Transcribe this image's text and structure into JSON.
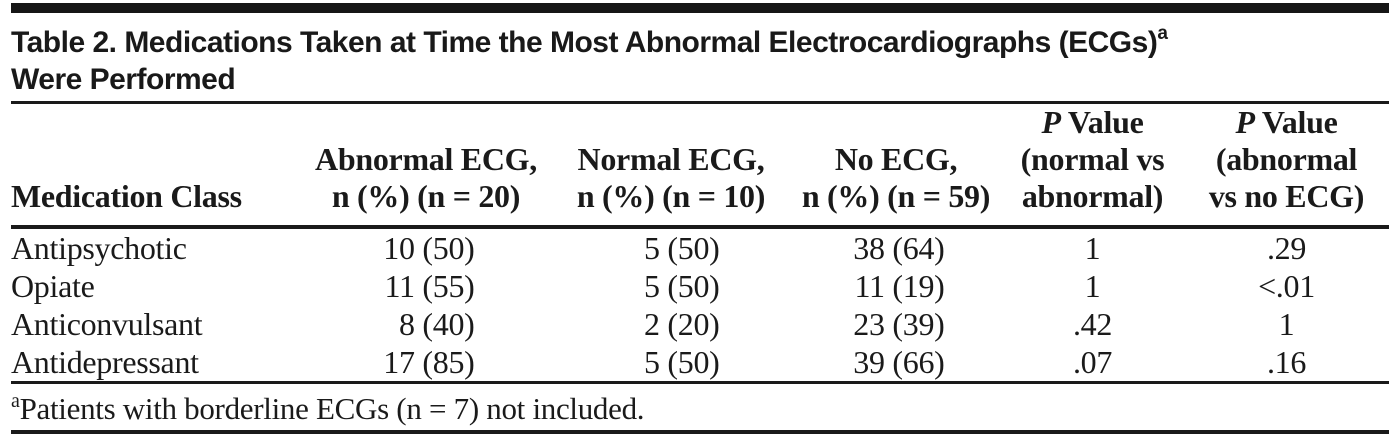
{
  "colors": {
    "background": "#ffffff",
    "text": "#1a1a1a",
    "rule": "#1a1a1a",
    "top_bar": "#161616"
  },
  "title": {
    "line1": "Table 2. Medications Taken at Time the Most Abnormal Electrocardiographs (ECGs)",
    "superscript": "a",
    "line2": "Were Performed"
  },
  "table": {
    "header": {
      "col1": "Medication Class",
      "col2": {
        "line1": "Abnormal ECG,",
        "line2": "n (%) (n = 20)"
      },
      "col3": {
        "line1": "Normal ECG,",
        "line2": "n (%) (n = 10)"
      },
      "col4": {
        "line1": "No ECG,",
        "line2": "n (%) (n = 59)"
      },
      "col5": {
        "p": "P",
        "line1_rest": " Value",
        "line2": "(normal vs",
        "line3": "abnormal)"
      },
      "col6": {
        "p": "P",
        "line1_rest": " Value",
        "line2": "(abnormal",
        "line3": "vs no ECG)"
      }
    },
    "rows": [
      {
        "medication_class": "Antipsychotic",
        "abnormal_ecg": "10 (50)",
        "normal_ecg": "5 (50)",
        "no_ecg": "38 (64)",
        "p_normal_vs_abnormal": "1",
        "p_abnormal_vs_no_ecg": ".29"
      },
      {
        "medication_class": "Opiate",
        "abnormal_ecg": "11 (55)",
        "normal_ecg": "5 (50)",
        "no_ecg": "11 (19)",
        "p_normal_vs_abnormal": "1",
        "p_abnormal_vs_no_ecg": "<.01"
      },
      {
        "medication_class": "Anticonvulsant",
        "abnormal_ecg": "8 (40)",
        "normal_ecg": "2 (20)",
        "no_ecg": "23 (39)",
        "p_normal_vs_abnormal": ".42",
        "p_abnormal_vs_no_ecg": "1"
      },
      {
        "medication_class": "Antidepressant",
        "abnormal_ecg": "17 (85)",
        "normal_ecg": "5 (50)",
        "no_ecg": "39 (66)",
        "p_normal_vs_abnormal": ".07",
        "p_abnormal_vs_no_ecg": ".16"
      }
    ]
  },
  "footnote": {
    "superscript": "a",
    "text": "Patients with borderline ECGs (n = 7) not included."
  }
}
